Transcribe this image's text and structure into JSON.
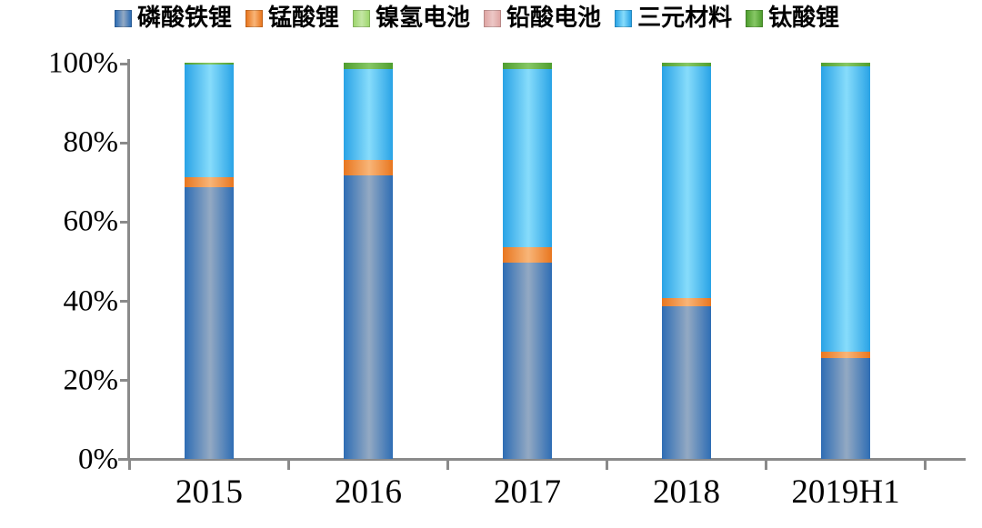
{
  "chart_data": {
    "type": "bar",
    "variant": "stacked-100-percent-column",
    "title": "",
    "xlabel": "",
    "ylabel": "",
    "ylim": [
      0,
      100
    ],
    "grid": false,
    "legend_position": "top",
    "categories": [
      "2015",
      "2016",
      "2017",
      "2018",
      "2019H1"
    ],
    "series": [
      {
        "name": "磷酸铁锂",
        "color_edge": "#2e6db4",
        "color_center": "#93a9c3",
        "values": [
          68.5,
          71.5,
          49.5,
          38.5,
          25.5
        ]
      },
      {
        "name": "锰酸锂",
        "color_edge": "#e8761f",
        "color_center": "#f8b578",
        "values": [
          2.5,
          4,
          4,
          2,
          1.5
        ]
      },
      {
        "name": "镍氢电池",
        "color_edge": "#9ed66e",
        "color_center": "#c4e6a4",
        "values": [
          0,
          0,
          0,
          0,
          0
        ]
      },
      {
        "name": "铅酸电池",
        "color_edge": "#dfa5a3",
        "color_center": "#ecc7c6",
        "values": [
          0,
          0,
          0,
          0,
          0
        ]
      },
      {
        "name": "三元材料",
        "color_edge": "#29a3e6",
        "color_center": "#87dcfb",
        "values": [
          28.5,
          23,
          45,
          58.5,
          72
        ]
      },
      {
        "name": "钛酸锂",
        "color_edge": "#4f9e2f",
        "color_center": "#86c765",
        "values": [
          0.5,
          1.5,
          1.5,
          1,
          1
        ]
      }
    ],
    "y_ticks": [
      {
        "label": "0%",
        "value": 0
      },
      {
        "label": "20%",
        "value": 20
      },
      {
        "label": "40%",
        "value": 40
      },
      {
        "label": "60%",
        "value": 60
      },
      {
        "label": "80%",
        "value": 80
      },
      {
        "label": "100%",
        "value": 100
      }
    ],
    "axis_color": "#8a8a8a"
  }
}
